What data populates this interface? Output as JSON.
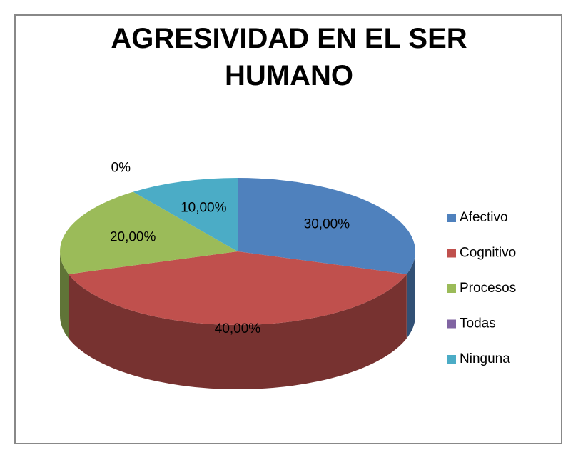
{
  "chart_data": {
    "type": "pie",
    "title": "AGRESIVIDAD EN EL SER HUMANO",
    "categories": [
      "Afectivo",
      "Cognitivo",
      "Procesos",
      "Todas",
      "Ninguna"
    ],
    "values": [
      30,
      40,
      20,
      0,
      10
    ],
    "value_labels": [
      "30,00%",
      "40,00%",
      "20,00%",
      "0%",
      "10,00%"
    ],
    "colors": [
      "#4f81bd",
      "#c0504d",
      "#9bbb59",
      "#8064a2",
      "#4bacc6"
    ],
    "legend": "right"
  }
}
